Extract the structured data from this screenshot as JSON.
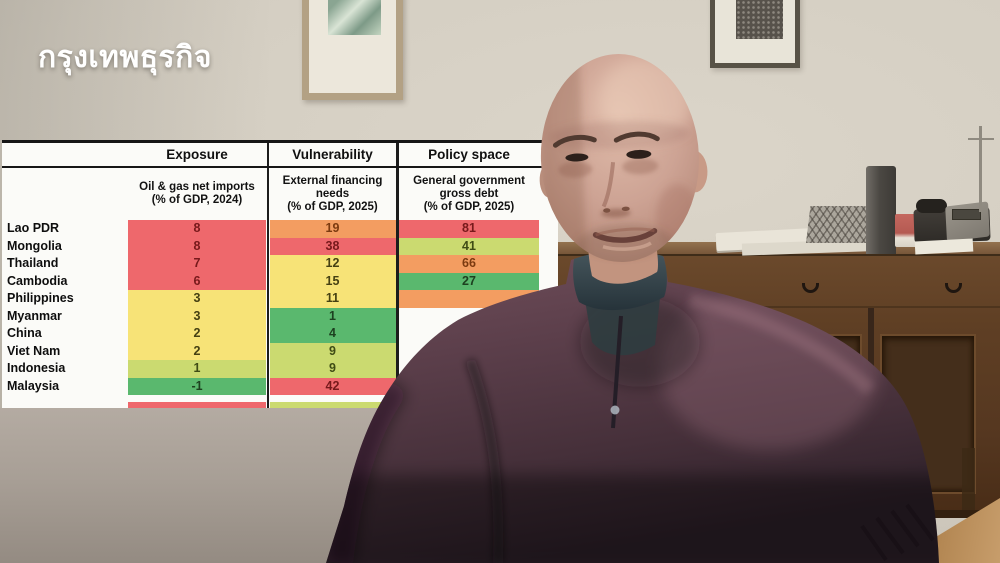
{
  "brand": {
    "logo_text": "กรุงเทพธุรกิจ"
  },
  "chart_data": {
    "type": "table",
    "column_groups": [
      {
        "label": "Exposure",
        "sub_line1": "Oil & gas net imports",
        "sub_line2": "(% of GDP, 2024)"
      },
      {
        "label": "Vulnerability",
        "sub_line1": "External financing needs",
        "sub_line2": "(% of GDP, 2025)"
      },
      {
        "label": "Policy space",
        "sub_line1": "General government gross debt",
        "sub_line2": "(% of GDP, 2025)"
      }
    ],
    "rows": [
      {
        "country": "Lao PDR",
        "cells": [
          {
            "value": "8",
            "level": "red"
          },
          {
            "value": "19",
            "level": "orange"
          },
          {
            "value": "81",
            "level": "red"
          }
        ]
      },
      {
        "country": "Mongolia",
        "cells": [
          {
            "value": "8",
            "level": "red"
          },
          {
            "value": "38",
            "level": "red"
          },
          {
            "value": "41",
            "level": "yellowgreen"
          }
        ]
      },
      {
        "country": "Thailand",
        "cells": [
          {
            "value": "7",
            "level": "red"
          },
          {
            "value": "12",
            "level": "yellow"
          },
          {
            "value": "66",
            "level": "orange"
          }
        ]
      },
      {
        "country": "Cambodia",
        "cells": [
          {
            "value": "6",
            "level": "red"
          },
          {
            "value": "15",
            "level": "yellow"
          },
          {
            "value": "27",
            "level": "green"
          }
        ]
      },
      {
        "country": "Philippines",
        "cells": [
          {
            "value": "3",
            "level": "yellow"
          },
          {
            "value": "11",
            "level": "yellow"
          },
          {
            "value": "",
            "level": "orange"
          }
        ]
      },
      {
        "country": "Myanmar",
        "cells": [
          {
            "value": "3",
            "level": "yellow"
          },
          {
            "value": "1",
            "level": "green"
          },
          {
            "value": "",
            "level": "hidden"
          }
        ]
      },
      {
        "country": "China",
        "cells": [
          {
            "value": "2",
            "level": "yellow"
          },
          {
            "value": "4",
            "level": "green"
          },
          {
            "value": "",
            "level": "hidden"
          }
        ]
      },
      {
        "country": "Viet Nam",
        "cells": [
          {
            "value": "2",
            "level": "yellow"
          },
          {
            "value": "9",
            "level": "yellowgreen"
          },
          {
            "value": "",
            "level": "hidden"
          }
        ]
      },
      {
        "country": "Indonesia",
        "cells": [
          {
            "value": "1",
            "level": "yellowgreen"
          },
          {
            "value": "9",
            "level": "yellowgreen"
          },
          {
            "value": "",
            "level": "hidden"
          }
        ]
      },
      {
        "country": "Malaysia",
        "cells": [
          {
            "value": "-1",
            "level": "green"
          },
          {
            "value": "42",
            "level": "red"
          },
          {
            "value": "",
            "level": "hidden"
          }
        ]
      }
    ],
    "partial_row": {
      "cells": [
        {
          "value": "",
          "level": "red"
        },
        {
          "value": "",
          "level": "yellowgreen"
        },
        {
          "value": "",
          "level": "hidden"
        }
      ]
    },
    "heat_colors": {
      "red": "#ee686c",
      "orange": "#f39d61",
      "yellow": "#f7e377",
      "yellowgreen": "#cbda70",
      "green": "#5ab86e"
    },
    "heat_text_colors": {
      "red": "#77191b",
      "orange": "#7b3a10",
      "yellow": "#454012",
      "yellowgreen": "#3f4c15",
      "green": "#1d4020"
    },
    "layout_notes": "heat-map table overlaid on left of video frame; third column partially occluded by speaker"
  }
}
